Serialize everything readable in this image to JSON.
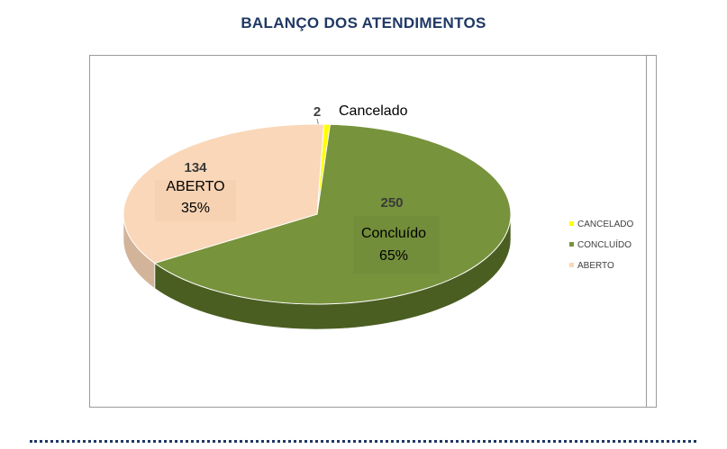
{
  "header": {
    "title": "BALANÇO DOS ATENDIMENTOS"
  },
  "chart_data": {
    "type": "pie",
    "title": "",
    "categories": [
      "CANCELADO",
      "CONCLUÍDO",
      "ABERTO"
    ],
    "values": [
      2,
      250,
      134
    ],
    "slice_labels": [
      {
        "value": "2",
        "name": "Cancelado",
        "percent": ""
      },
      {
        "value": "250",
        "name": "Concluído",
        "percent": "65%"
      },
      {
        "value": "134",
        "name": "ABERTO",
        "percent": "35%"
      }
    ],
    "colors": [
      "#ffff00",
      "#77933c",
      "#fad7b8"
    ],
    "side_colors": [
      "#c6c600",
      "#4b5e22",
      "#d2b49a"
    ],
    "legend": {
      "position": "right",
      "items": [
        "CANCELADO",
        "CONCLUÍDO",
        "ABERTO"
      ]
    },
    "style": "3d-pie"
  }
}
